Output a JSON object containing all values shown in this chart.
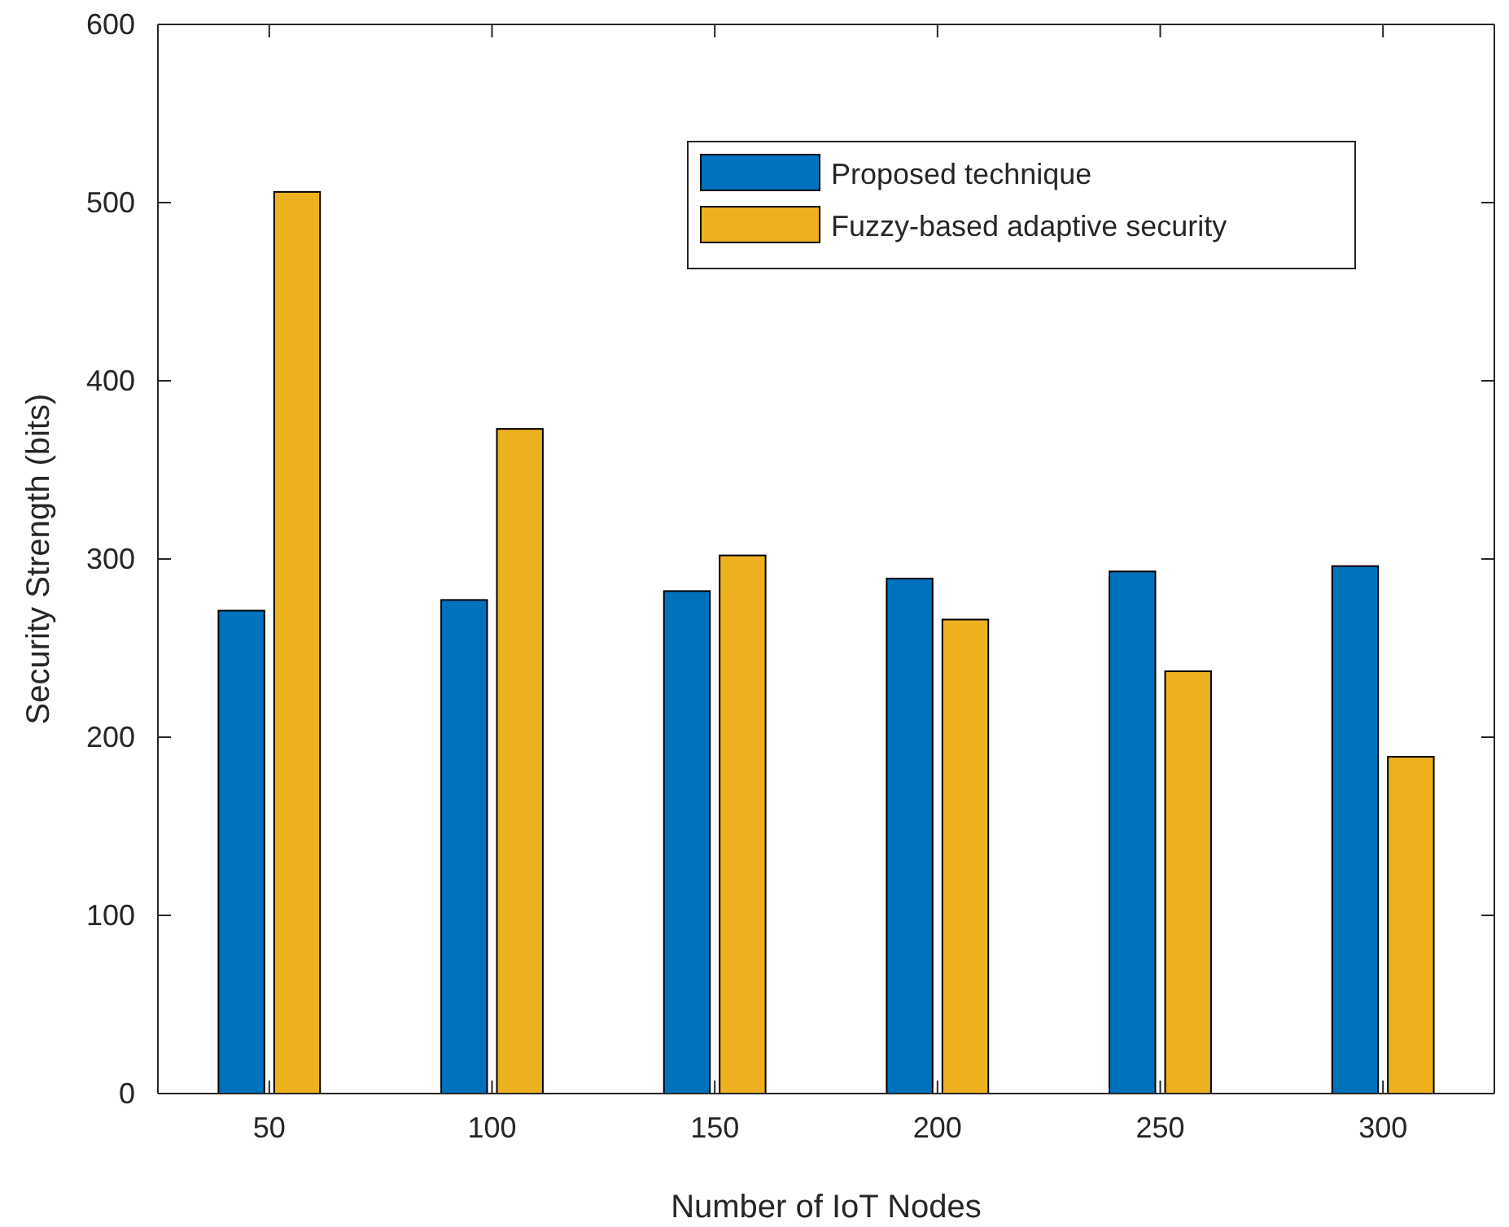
{
  "chart_data": {
    "type": "bar",
    "xlabel": "Number of IoT Nodes",
    "ylabel": "Security Strength (bits)",
    "categories": [
      "50",
      "100",
      "150",
      "200",
      "250",
      "300"
    ],
    "series": [
      {
        "name": "Proposed technique",
        "color": "#0072bd",
        "values": [
          271,
          277,
          282,
          289,
          293,
          296
        ]
      },
      {
        "name": "Fuzzy-based adaptive security",
        "color": "#edb120",
        "values": [
          506,
          373,
          302,
          266,
          237,
          189
        ]
      }
    ],
    "ylim": [
      0,
      600
    ],
    "yticks": [
      0,
      100,
      200,
      300,
      400,
      500,
      600
    ],
    "grid": false,
    "legend": "top"
  }
}
